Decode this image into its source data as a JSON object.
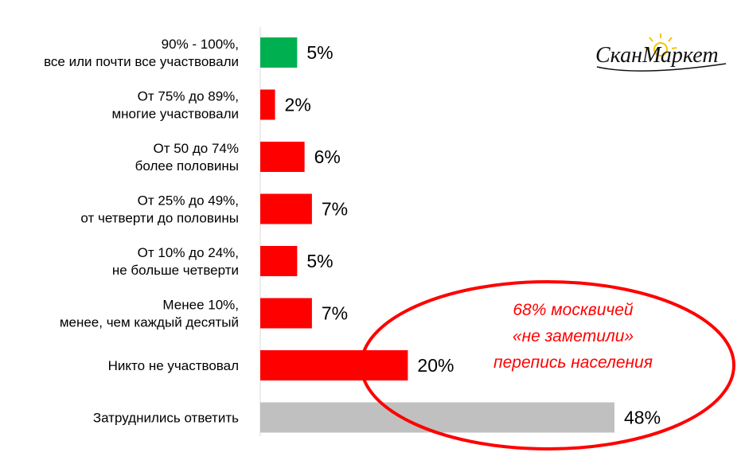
{
  "chart_data": {
    "type": "bar",
    "orientation": "horizontal",
    "categories": [
      [
        "90% - 100%,",
        "все или почти все участвовали"
      ],
      [
        "От 75% до 89%,",
        "многие участвовали"
      ],
      [
        "От 50 до 74%",
        "более половины"
      ],
      [
        "От 25% до 49%,",
        "от четверти до половины"
      ],
      [
        "От 10% до 24%,",
        "не больше четверти"
      ],
      [
        "Менее 10%,",
        "менее, чем каждый десятый"
      ],
      [
        "Никто не участвовал"
      ],
      [
        "Затруднились ответить"
      ]
    ],
    "values": [
      5,
      2,
      6,
      7,
      5,
      7,
      20,
      48
    ],
    "value_labels": [
      "5%",
      "2%",
      "6%",
      "7%",
      "5%",
      "7%",
      "20%",
      "48%"
    ],
    "colors": [
      "#00b050",
      "#ff0000",
      "#ff0000",
      "#ff0000",
      "#ff0000",
      "#ff0000",
      "#ff0000",
      "#c0c0c0"
    ],
    "xlim": [
      0,
      48
    ],
    "grid": false,
    "annotation": {
      "lines": [
        "68% москвичей",
        "«не заметили»",
        "перепись населения"
      ],
      "color": "#ff0000"
    }
  },
  "logo": {
    "text": "СканМаркет",
    "accent": "#f5c400"
  }
}
